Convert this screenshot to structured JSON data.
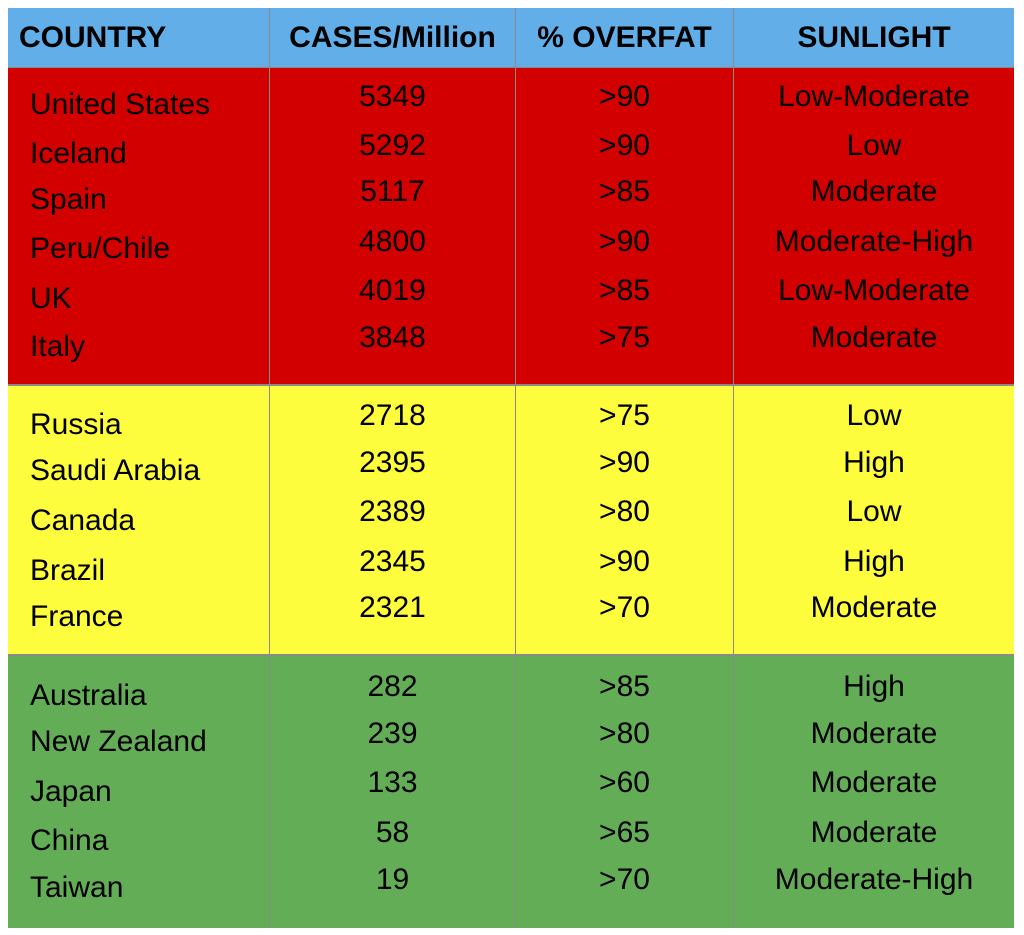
{
  "header": {
    "country": "COUNTRY",
    "cases": "CASES/Million",
    "overfat": "% OVERFAT",
    "sunlight": "SUNLIGHT"
  },
  "group_colors": {
    "header": "#62aee9",
    "high_cases": "#d30000",
    "medium_cases": "#fdfd3e",
    "low_cases": "#64ad57"
  },
  "groups": [
    {
      "rows": [
        {
          "country": "United States",
          "cases": "5349",
          "overfat": ">90",
          "sunlight": "Low-Moderate"
        },
        {
          "country": "Iceland",
          "cases": "5292",
          "overfat": ">90",
          "sunlight": "Low"
        },
        {
          "country": "Spain",
          "cases": "5117",
          "overfat": ">85",
          "sunlight": "Moderate"
        },
        {
          "country": "Peru/Chile",
          "cases": "4800",
          "overfat": ">90",
          "sunlight": "Moderate-High"
        },
        {
          "country": "UK",
          "cases": "4019",
          "overfat": ">85",
          "sunlight": "Low-Moderate"
        },
        {
          "country": "Italy",
          "cases": "3848",
          "overfat": ">75",
          "sunlight": "Moderate"
        }
      ]
    },
    {
      "rows": [
        {
          "country": "Russia",
          "cases": "2718",
          "overfat": ">75",
          "sunlight": "Low"
        },
        {
          "country": "Saudi Arabia",
          "cases": "2395",
          "overfat": ">90",
          "sunlight": "High"
        },
        {
          "country": "Canada",
          "cases": "2389",
          "overfat": ">80",
          "sunlight": "Low"
        },
        {
          "country": "Brazil",
          "cases": "2345",
          "overfat": ">90",
          "sunlight": "High"
        },
        {
          "country": "France",
          "cases": "2321",
          "overfat": ">70",
          "sunlight": "Moderate"
        }
      ]
    },
    {
      "rows": [
        {
          "country": "Australia",
          "cases": "282",
          "overfat": ">85",
          "sunlight": "High"
        },
        {
          "country": "New Zealand",
          "cases": "239",
          "overfat": ">80",
          "sunlight": "Moderate"
        },
        {
          "country": "Japan",
          "cases": "133",
          "overfat": ">60",
          "sunlight": "Moderate"
        },
        {
          "country": "China",
          "cases": "58",
          "overfat": ">65",
          "sunlight": "Moderate"
        },
        {
          "country": "Taiwan",
          "cases": "19",
          "overfat": ">70",
          "sunlight": "Moderate-High"
        }
      ]
    }
  ]
}
